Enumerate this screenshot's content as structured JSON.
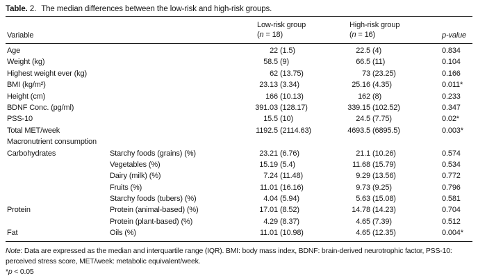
{
  "colors": {
    "text": "#161616",
    "background": "#ffffff"
  },
  "title": {
    "bold": "Table.",
    "number": "2.",
    "text": "The median differences between the low-risk and high-risk groups."
  },
  "header": {
    "variable": "Variable",
    "low": {
      "label": "Low-risk group",
      "n_open": "(",
      "n_var": "n",
      "n_rest": " = 18)"
    },
    "high": {
      "label": "High-risk group",
      "n_open": "(",
      "n_var": "n",
      "n_rest": " = 16)"
    },
    "p": {
      "var": "p",
      "rest": "-value"
    }
  },
  "table": {
    "rows": [
      {
        "variable": "Age",
        "sub": "",
        "low_median": "22",
        "low_iqr": "(1.5)",
        "high_median": "22.5",
        "high_iqr": "(4)",
        "p_value": "0.834"
      },
      {
        "variable": "Weight (kg)",
        "sub": "",
        "low_median": "58.5",
        "low_iqr": "(9)",
        "high_median": "66.5",
        "high_iqr": "(11)",
        "p_value": "0.104"
      },
      {
        "variable": "Highest weight ever (kg)",
        "sub": "",
        "low_median": "62",
        "low_iqr": "(13.75)",
        "high_median": "73",
        "high_iqr": "(23.25)",
        "p_value": "0.166"
      },
      {
        "variable": "BMI (kg/m²)",
        "sub": "",
        "low_median": "23.13",
        "low_iqr": "(3.34)",
        "high_median": "25.16",
        "high_iqr": "(4.35)",
        "p_value": "0.011*"
      },
      {
        "variable": "Height (cm)",
        "sub": "",
        "low_median": "166",
        "low_iqr": "(10.13)",
        "high_median": "162",
        "high_iqr": "(8)",
        "p_value": "0.233"
      },
      {
        "variable": "BDNF Conc. (pg/ml)",
        "sub": "",
        "low_median": "391.03",
        "low_iqr": "(128.17)",
        "high_median": "339.15",
        "high_iqr": "(102.52)",
        "p_value": "0.347"
      },
      {
        "variable": "PSS-10",
        "sub": "",
        "low_median": "15.5",
        "low_iqr": "(10)",
        "high_median": "24.5",
        "high_iqr": "(7.75)",
        "p_value": "0.02*"
      },
      {
        "variable": "Total MET/week",
        "sub": "",
        "low_median": "1192.5",
        "low_iqr": "(2114.63)",
        "high_median": "4693.5",
        "high_iqr": "(6895.5)",
        "p_value": "0.003*"
      },
      {
        "variable": "Macronutrient consumption",
        "sub": "",
        "low_median": "",
        "low_iqr": "",
        "high_median": "",
        "high_iqr": "",
        "p_value": ""
      },
      {
        "variable": "Carbohydrates",
        "sub": "Starchy foods (grains) (%)",
        "low_median": "23.21",
        "low_iqr": "(6.76)",
        "high_median": "21.1",
        "high_iqr": "(10.26)",
        "p_value": "0.574"
      },
      {
        "variable": "",
        "sub": "Vegetables (%)",
        "low_median": "15.19",
        "low_iqr": "(5.4)",
        "high_median": "11.68",
        "high_iqr": "(15.79)",
        "p_value": "0.534"
      },
      {
        "variable": "",
        "sub": "Dairy (milk) (%)",
        "low_median": "7.24",
        "low_iqr": "(11.48)",
        "high_median": "9.29",
        "high_iqr": "(13.56)",
        "p_value": "0.772"
      },
      {
        "variable": "",
        "sub": "Fruits (%)",
        "low_median": "11.01",
        "low_iqr": "(16.16)",
        "high_median": "9.73",
        "high_iqr": "(9.25)",
        "p_value": "0.796"
      },
      {
        "variable": "",
        "sub": "Starchy foods (tubers) (%)",
        "low_median": "4.04",
        "low_iqr": "(5.94)",
        "high_median": "5.63",
        "high_iqr": "(15.08)",
        "p_value": "0.581"
      },
      {
        "variable": "Protein",
        "sub": "Protein (animal-based) (%)",
        "low_median": "17.01",
        "low_iqr": "(8.52)",
        "high_median": "14.78",
        "high_iqr": "(14.23)",
        "p_value": "0.704"
      },
      {
        "variable": "",
        "sub": "Protein (plant-based) (%)",
        "low_median": "4.29",
        "low_iqr": "(8.37)",
        "high_median": "4.65",
        "high_iqr": "(7.39)",
        "p_value": "0.512"
      },
      {
        "variable": "Fat",
        "sub": "Oils (%)",
        "low_median": "11.01",
        "low_iqr": "(10.98)",
        "high_median": "4.65",
        "high_iqr": "(12.35)",
        "p_value": "0.004*"
      }
    ]
  },
  "note": {
    "label": "Note",
    "text": ": Data are expressed as the median and interquartile range (IQR). BMI: body mass index, BDNF: brain-derived neurotrophic factor, PSS-10: perceived stress score, MET/week: metabolic equivalent/week.",
    "sig_star": "*",
    "sig_p": "p",
    "sig_rest": " < 0.05"
  }
}
